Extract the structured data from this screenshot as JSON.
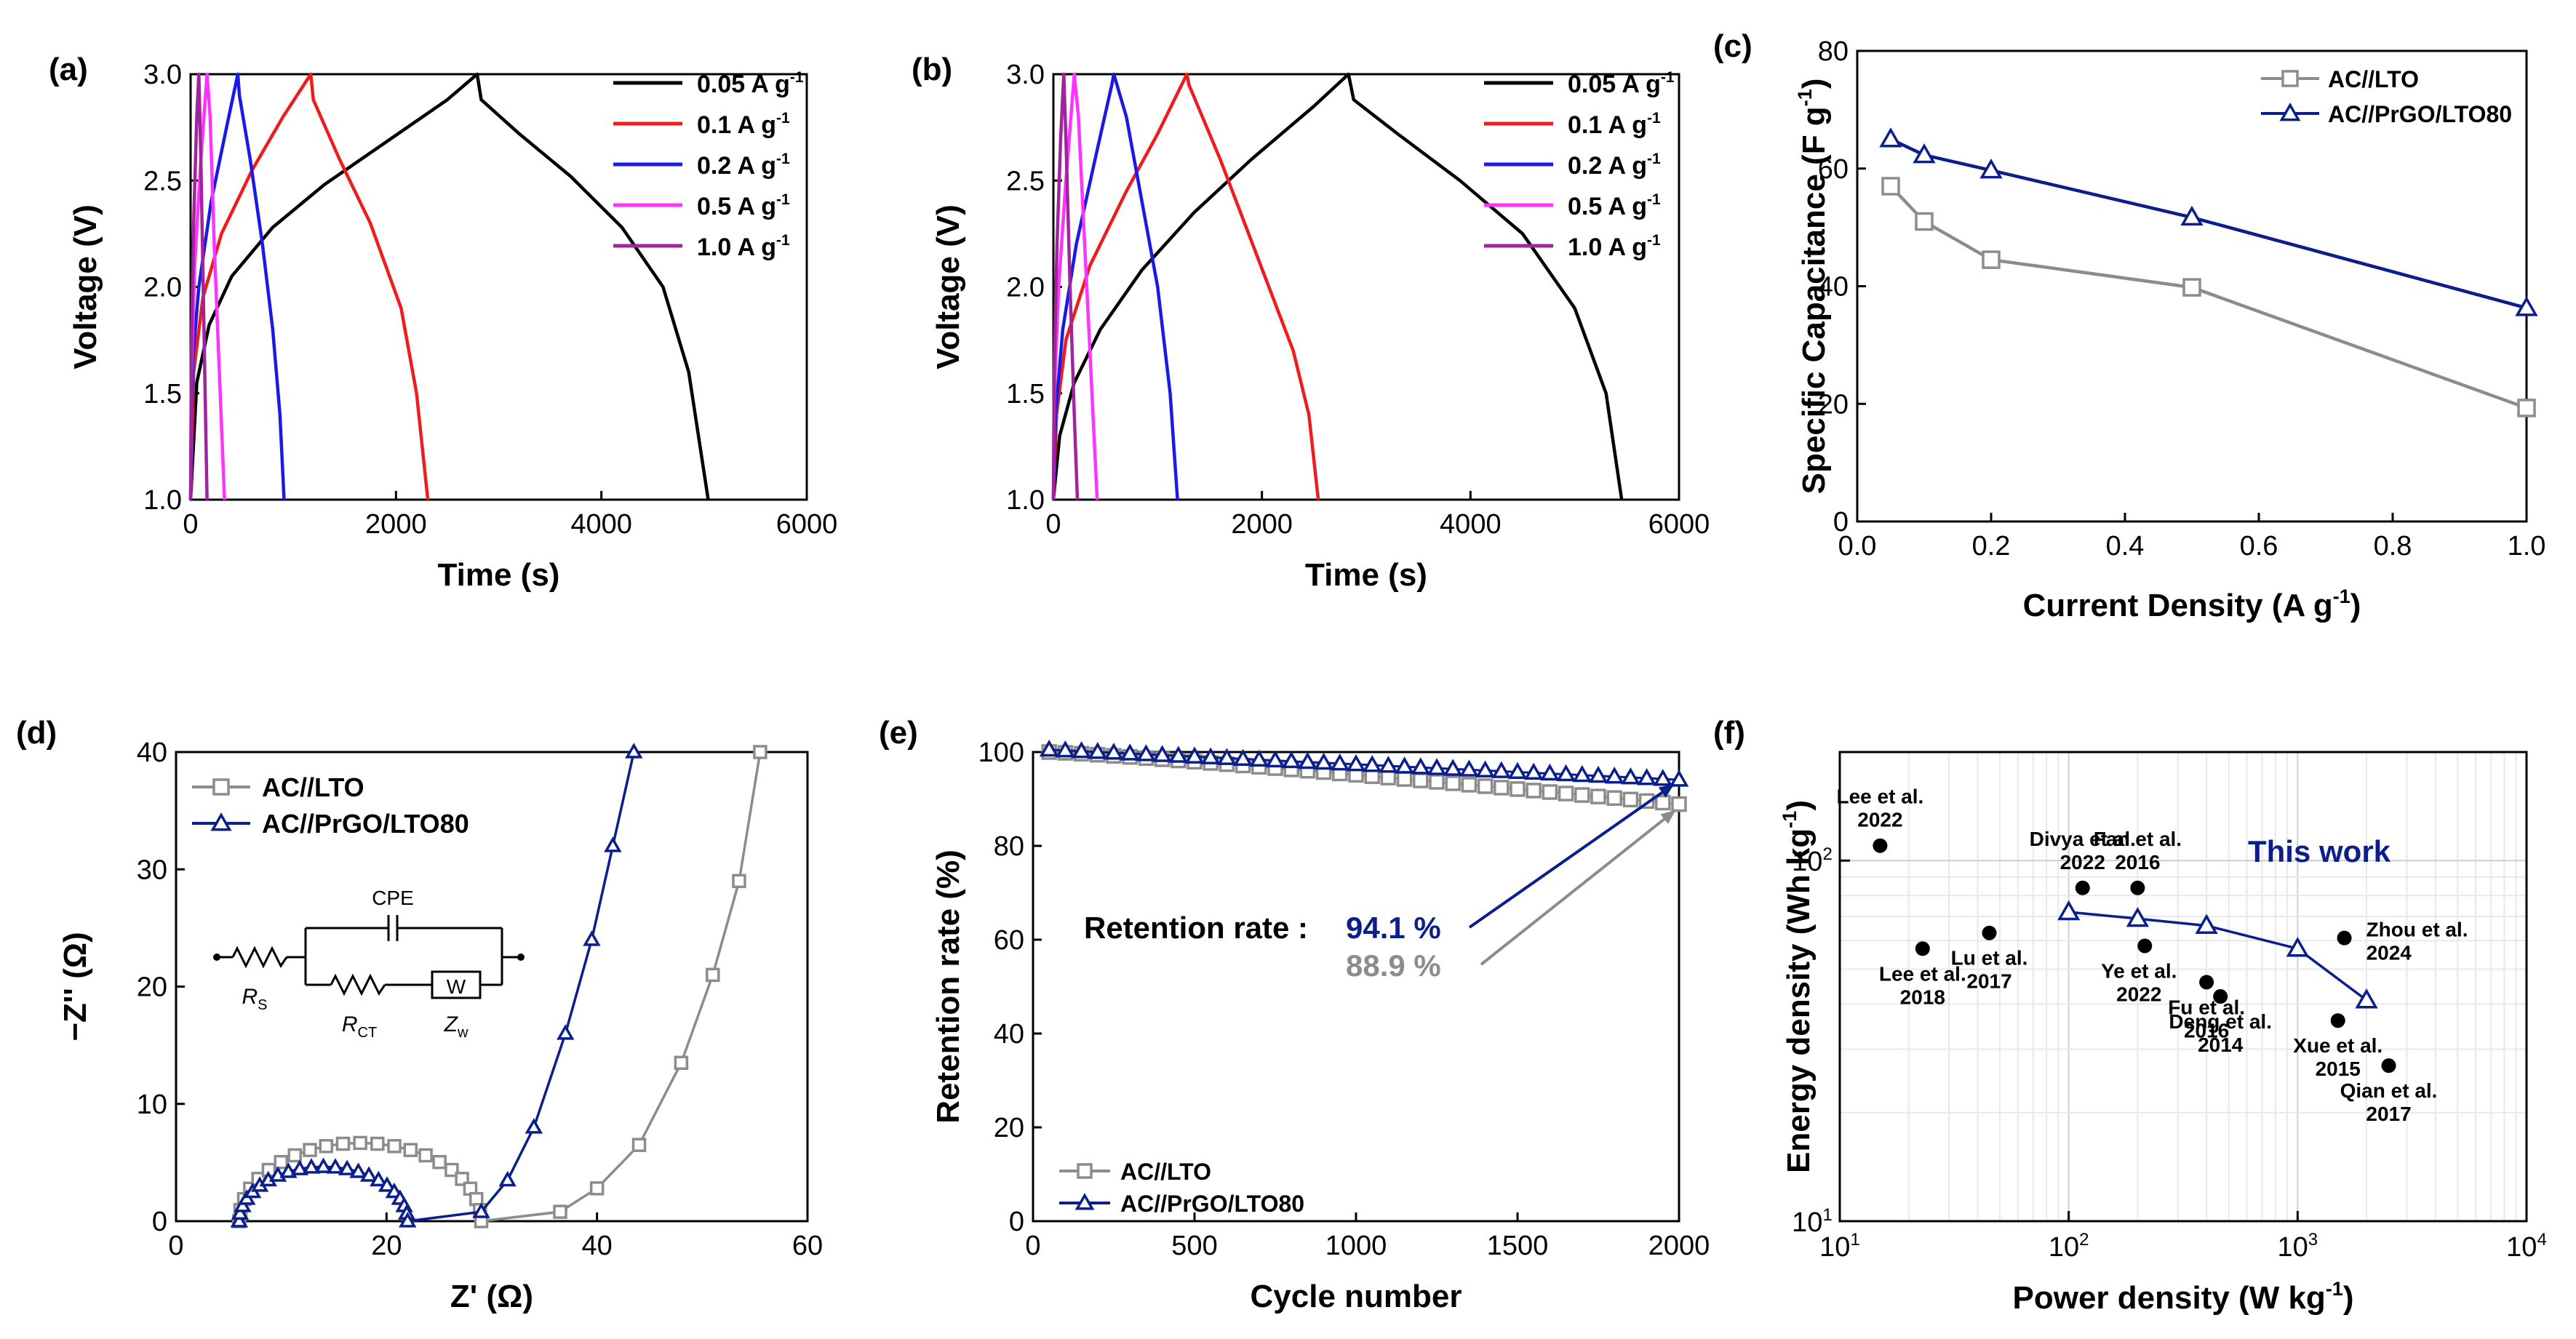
{
  "chart_data": [
    {
      "panel": "(a)",
      "type": "line",
      "xlabel": "Time (s)",
      "ylabel": "Voltage (V)",
      "xlim": [
        0,
        6000
      ],
      "ylim": [
        1.0,
        3.0
      ],
      "xticks": [
        "0",
        "2000",
        "4000",
        "6000"
      ],
      "yticks": [
        "1.0",
        "1.5",
        "2.0",
        "2.5",
        "3.0"
      ],
      "legend_position": "top-right",
      "series": [
        {
          "name": "0.05 A g",
          "sup": "-1",
          "color": "#000000",
          "x": [
            0,
            60,
            180,
            400,
            800,
            1300,
            1900,
            2500,
            2790,
            2830,
            3200,
            3700,
            4200,
            4600,
            4850,
            5040
          ],
          "y": [
            1.0,
            1.55,
            1.82,
            2.05,
            2.28,
            2.48,
            2.68,
            2.88,
            3.0,
            2.88,
            2.72,
            2.52,
            2.28,
            2.0,
            1.6,
            1.0
          ]
        },
        {
          "name": "0.1 A g",
          "sup": "-1",
          "color": "#ee1c1c",
          "x": [
            0,
            30,
            120,
            300,
            600,
            900,
            1170,
            1195,
            1450,
            1750,
            2050,
            2200,
            2310
          ],
          "y": [
            1.0,
            1.6,
            1.95,
            2.25,
            2.55,
            2.8,
            3.0,
            2.88,
            2.6,
            2.3,
            1.9,
            1.5,
            1.0
          ]
        },
        {
          "name": "0.2 A g",
          "sup": "-1",
          "color": "#1a1ae6",
          "x": [
            0,
            20,
            80,
            200,
            350,
            460,
            475,
            580,
            700,
            800,
            870,
            910
          ],
          "y": [
            1.0,
            1.65,
            2.0,
            2.4,
            2.75,
            3.0,
            2.9,
            2.6,
            2.2,
            1.8,
            1.4,
            1.0
          ]
        },
        {
          "name": "0.5 A g",
          "sup": "-1",
          "color": "#ff33ff",
          "x": [
            0,
            10,
            40,
            100,
            160,
            190,
            230,
            280,
            330
          ],
          "y": [
            1.0,
            1.6,
            2.1,
            2.6,
            3.0,
            2.8,
            2.2,
            1.6,
            1.0
          ]
        },
        {
          "name": "1.0 A g",
          "sup": "-1",
          "color": "#a0249c",
          "x": [
            0,
            8,
            30,
            60,
            80,
            100,
            130,
            160
          ],
          "y": [
            1.0,
            1.7,
            2.3,
            2.8,
            3.0,
            2.6,
            1.8,
            1.0
          ]
        }
      ]
    },
    {
      "panel": "(b)",
      "type": "line",
      "xlabel": "Time (s)",
      "ylabel": "Voltage (V)",
      "xlim": [
        0,
        6000
      ],
      "ylim": [
        1.0,
        3.0
      ],
      "xticks": [
        "0",
        "2000",
        "4000",
        "6000"
      ],
      "yticks": [
        "1.0",
        "1.5",
        "2.0",
        "2.5",
        "3.0"
      ],
      "legend_position": "top-right",
      "series": [
        {
          "name": "0.05 A g",
          "sup": "-1",
          "color": "#000000",
          "x": [
            0,
            60,
            200,
            450,
            850,
            1350,
            1900,
            2500,
            2830,
            2880,
            3300,
            3900,
            4500,
            5000,
            5300,
            5450
          ],
          "y": [
            1.0,
            1.3,
            1.55,
            1.8,
            2.08,
            2.35,
            2.6,
            2.85,
            3.0,
            2.88,
            2.72,
            2.5,
            2.25,
            1.9,
            1.5,
            1.0
          ]
        },
        {
          "name": "0.1 A g",
          "sup": "-1",
          "color": "#ee1c1c",
          "x": [
            0,
            30,
            120,
            350,
            700,
            1000,
            1280,
            1300,
            1600,
            1950,
            2300,
            2450,
            2540
          ],
          "y": [
            1.0,
            1.4,
            1.75,
            2.1,
            2.45,
            2.72,
            3.0,
            2.95,
            2.6,
            2.15,
            1.7,
            1.4,
            1.0
          ]
        },
        {
          "name": "0.2 A g",
          "sup": "-1",
          "color": "#1a1ae6",
          "x": [
            0,
            20,
            90,
            220,
            400,
            560,
            580,
            700,
            850,
            1000,
            1120,
            1190
          ],
          "y": [
            1.0,
            1.4,
            1.8,
            2.2,
            2.6,
            2.95,
            3.0,
            2.8,
            2.4,
            2.0,
            1.5,
            1.0
          ]
        },
        {
          "name": "0.5 A g",
          "sup": "-1",
          "color": "#ff33ff",
          "x": [
            0,
            10,
            50,
            120,
            200,
            240,
            300,
            360,
            420
          ],
          "y": [
            1.0,
            1.5,
            2.0,
            2.5,
            3.0,
            2.8,
            2.2,
            1.6,
            1.0
          ]
        },
        {
          "name": "1.0 A g",
          "sup": "-1",
          "color": "#a0249c",
          "x": [
            0,
            8,
            35,
            70,
            100,
            120,
            160,
            200,
            230
          ],
          "y": [
            1.0,
            1.6,
            2.2,
            2.7,
            3.0,
            2.7,
            2.0,
            1.4,
            1.0
          ]
        }
      ]
    },
    {
      "panel": "(c)",
      "type": "line",
      "xlabel": "Current Density (A g",
      "xlabel_sup": "-1",
      "ylabel": "Specific Capacitance (F g",
      "ylabel_sup": "-1",
      "xlim": [
        0.0,
        1.0
      ],
      "ylim": [
        0,
        80
      ],
      "xticks": [
        "0.0",
        "0.2",
        "0.4",
        "0.6",
        "0.8",
        "1.0"
      ],
      "yticks": [
        "0",
        "20",
        "40",
        "60",
        "80"
      ],
      "legend_position": "top-right",
      "series": [
        {
          "name": "AC//LTO",
          "color": "#8c8c8c",
          "marker": "square",
          "x": [
            0.05,
            0.1,
            0.2,
            0.5,
            1.0
          ],
          "y": [
            57,
            51,
            44.5,
            39.8,
            19.3
          ]
        },
        {
          "name": "AC//PrGO/LTO80",
          "color": "#0a1e8c",
          "marker": "triangle",
          "x": [
            0.05,
            0.1,
            0.2,
            0.5,
            1.0
          ],
          "y": [
            65,
            62.3,
            59.7,
            51.7,
            36.3
          ]
        }
      ]
    },
    {
      "panel": "(d)",
      "type": "scatter",
      "xlabel": "Z' (Ω)",
      "ylabel": "−Z'' (Ω)",
      "xlim": [
        0,
        60
      ],
      "ylim": [
        0,
        40
      ],
      "xticks": [
        "0",
        "20",
        "40",
        "60"
      ],
      "yticks": [
        "0",
        "10",
        "20",
        "30",
        "40"
      ],
      "legend_position": "top-left",
      "series": [
        {
          "name": "AC//LTO",
          "color": "#8c8c8c",
          "marker": "square",
          "type": "semicircle",
          "r_s": 6.0,
          "r_ct": 29.0,
          "tail": [
            [
              36.5,
              0.8
            ],
            [
              40,
              2.8
            ],
            [
              44,
              6.5
            ],
            [
              48,
              13.5
            ],
            [
              51,
              21
            ],
            [
              53.5,
              29
            ],
            [
              55.5,
              40
            ]
          ]
        },
        {
          "name": "AC//PrGO/LTO80",
          "color": "#0a1e8c",
          "marker": "triangle",
          "type": "semicircle",
          "r_s": 6.0,
          "r_ct": 22.0,
          "tail": [
            [
              29,
              0.8
            ],
            [
              31.5,
              3.5
            ],
            [
              34,
              8
            ],
            [
              37,
              16
            ],
            [
              39.5,
              24
            ],
            [
              41.5,
              32
            ],
            [
              43.5,
              40
            ]
          ]
        }
      ],
      "inset": {
        "title": "CPE",
        "labels": [
          "R",
          "R",
          "Z",
          "W"
        ],
        "subs": [
          "S",
          "CT",
          "w"
        ]
      }
    },
    {
      "panel": "(e)",
      "type": "scatter",
      "xlabel": "Cycle number",
      "ylabel": "Retention rate (%)",
      "xlim": [
        0,
        2000
      ],
      "ylim": [
        0,
        100
      ],
      "xticks": [
        "0",
        "500",
        "1000",
        "1500",
        "2000"
      ],
      "yticks": [
        "0",
        "20",
        "40",
        "60",
        "80",
        "100"
      ],
      "legend_position": "bottom-left",
      "retention_label": "Retention rate :",
      "series": [
        {
          "name": "AC//LTO",
          "color": "#8c8c8c",
          "marker": "square",
          "start": 100.0,
          "end": 88.9,
          "final_label": "88.9 %"
        },
        {
          "name": "AC//PrGO/LTO80",
          "color": "#0a1e8c",
          "marker": "triangle",
          "start": 100.5,
          "end": 94.1,
          "final_label": "94.1 %"
        }
      ]
    },
    {
      "panel": "(f)",
      "type": "scatter",
      "xlabel": "Power density (W kg",
      "xlabel_sup": "-1",
      "ylabel": "Energy density (Wh kg",
      "ylabel_sup": "-1",
      "scale": "log-log",
      "xlim": [
        10,
        10000
      ],
      "ylim": [
        10,
        200
      ],
      "xticks": [
        "10",
        "10",
        "10",
        "10"
      ],
      "xtick_exps": [
        "1",
        "2",
        "3",
        "4"
      ],
      "yticks": [
        "10",
        "10"
      ],
      "ytick_exps": [
        "1",
        "2"
      ],
      "highlight_label": "This work",
      "this_work": {
        "color": "#0a1e8c",
        "x": [
          100,
          200,
          400,
          1000,
          2000
        ],
        "y": [
          72,
          69,
          66,
          57,
          41
        ]
      },
      "references": [
        {
          "author": "Lee et al.",
          "year": "2022",
          "x": 15,
          "y": 110
        },
        {
          "author": "Lee et al.",
          "year": "2018",
          "x": 23,
          "y": 57
        },
        {
          "author": "Lu et al.",
          "year": "2017",
          "x": 45,
          "y": 63
        },
        {
          "author": "Divya et al.",
          "year": "2022",
          "x": 115,
          "y": 84
        },
        {
          "author": "Fan et al.",
          "year": "2016",
          "x": 200,
          "y": 84
        },
        {
          "author": "Ye et al.",
          "year": "2022",
          "x": 215,
          "y": 58
        },
        {
          "author": "Fu et al.",
          "year": "2016",
          "x": 400,
          "y": 46
        },
        {
          "author": "Deng et al.",
          "year": "2014",
          "x": 460,
          "y": 42
        },
        {
          "author": "Xue et al.",
          "year": "2015",
          "x": 1500,
          "y": 36
        },
        {
          "author": "Zhou et al.",
          "year": "2024",
          "x": 1600,
          "y": 61
        },
        {
          "author": "Qian et al.",
          "year": "2017",
          "x": 2500,
          "y": 27
        }
      ]
    }
  ]
}
